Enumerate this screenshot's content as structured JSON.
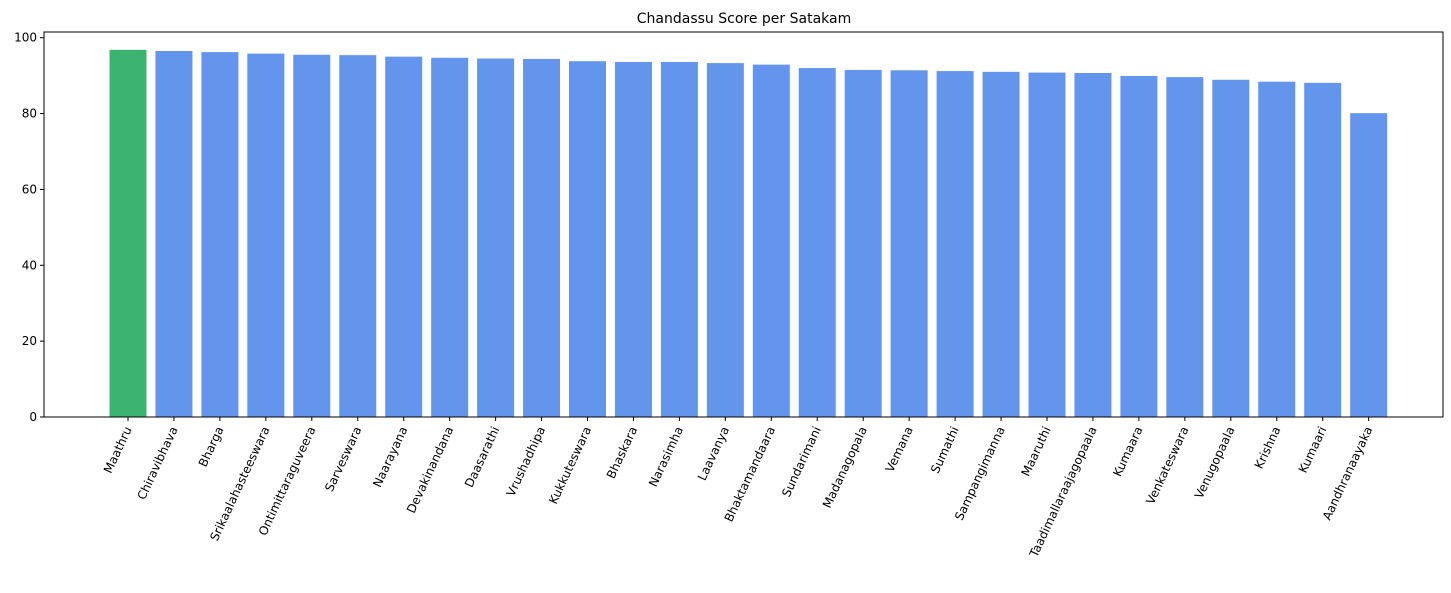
{
  "chart_data": {
    "type": "bar",
    "title": "Chandassu Score per Satakam",
    "xlabel": "",
    "ylabel": "",
    "ylim": [
      0,
      101.5
    ],
    "yticks": [
      0,
      20,
      40,
      60,
      80,
      100
    ],
    "grid": false,
    "categories": [
      "Maathru",
      "Chiravibhava",
      "Bharga",
      "Srikaalahasteeswara",
      "Ontimittaraguveera",
      "Sarveswara",
      "Naarayana",
      "Devakinandana",
      "Daasarathi",
      "Vrushadhipa",
      "Kukkuteswara",
      "Bhaskara",
      "Narasimha",
      "Laavanya",
      "Bhaktamandaara",
      "Sundarimani",
      "Madanagopala",
      "Vemana",
      "Sumathi",
      "Sampangimanna",
      "Maaruthi",
      "Taadimallaraajagopaala",
      "Kumaara",
      "Venkateswara",
      "Venugopaala",
      "Krishna",
      "Kumaari",
      "Aandhranaayaka"
    ],
    "values": [
      96.8,
      96.5,
      96.2,
      95.8,
      95.5,
      95.4,
      95.0,
      94.7,
      94.5,
      94.4,
      93.8,
      93.6,
      93.6,
      93.3,
      92.9,
      92.0,
      91.5,
      91.4,
      91.2,
      91.0,
      90.8,
      90.7,
      89.9,
      89.6,
      88.9,
      88.4,
      88.1,
      80.1
    ],
    "colors": {
      "highlight": "#3cb371",
      "default": "#6495ed"
    },
    "highlight_index": 0
  }
}
